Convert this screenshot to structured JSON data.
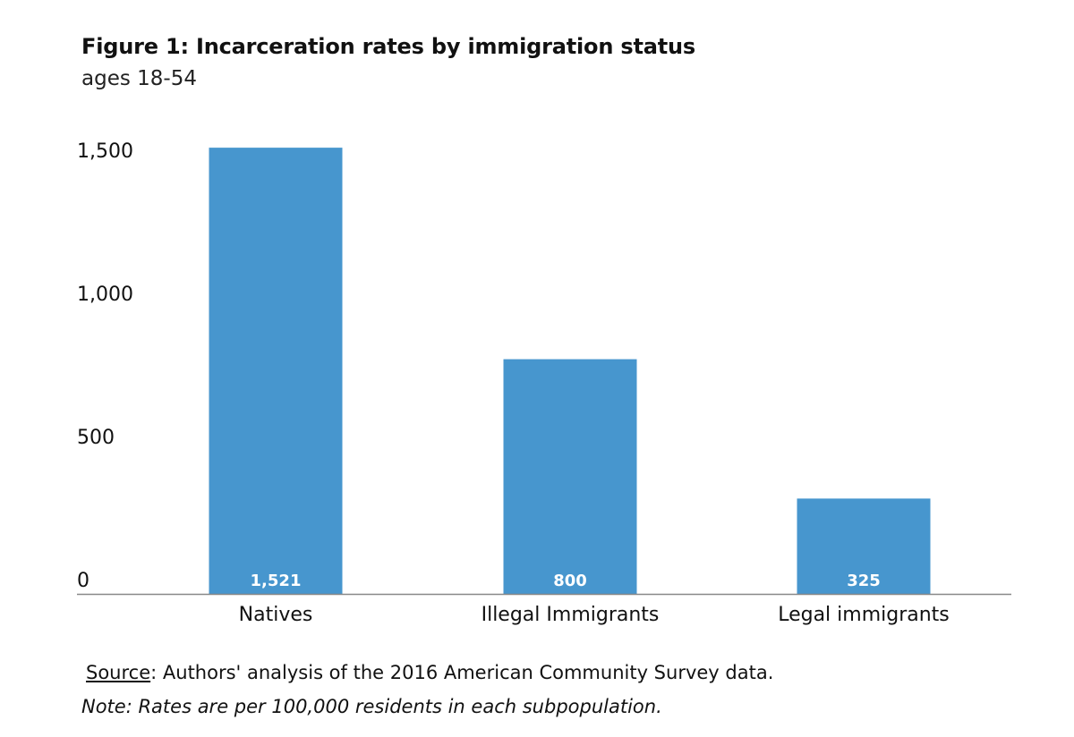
{
  "chart_data": {
    "type": "bar",
    "title": "Figure 1: Incarceration rates by immigration status",
    "subtitle": "ages 18-54",
    "categories": [
      "Natives",
      "Illegal Immigrants",
      "Legal immigrants"
    ],
    "values": [
      1521,
      800,
      325
    ],
    "data_labels": [
      "1,521",
      "800",
      "325"
    ],
    "y_ticks": [
      0,
      500,
      1000,
      1500
    ],
    "y_tick_labels": [
      "0",
      "500",
      "1,000",
      "1,500"
    ],
    "ylim": [
      0,
      1500
    ],
    "xlabel": "",
    "ylabel": "",
    "grid": false,
    "bar_color": "#4796ce",
    "label_color": "#ffffff",
    "axis_color": "#888888"
  },
  "footer": {
    "source_label": "Source",
    "source_text": ": Authors' analysis of the 2016 American Community Survey data.",
    "note": "Note: Rates are per 100,000 residents in each subpopulation."
  }
}
